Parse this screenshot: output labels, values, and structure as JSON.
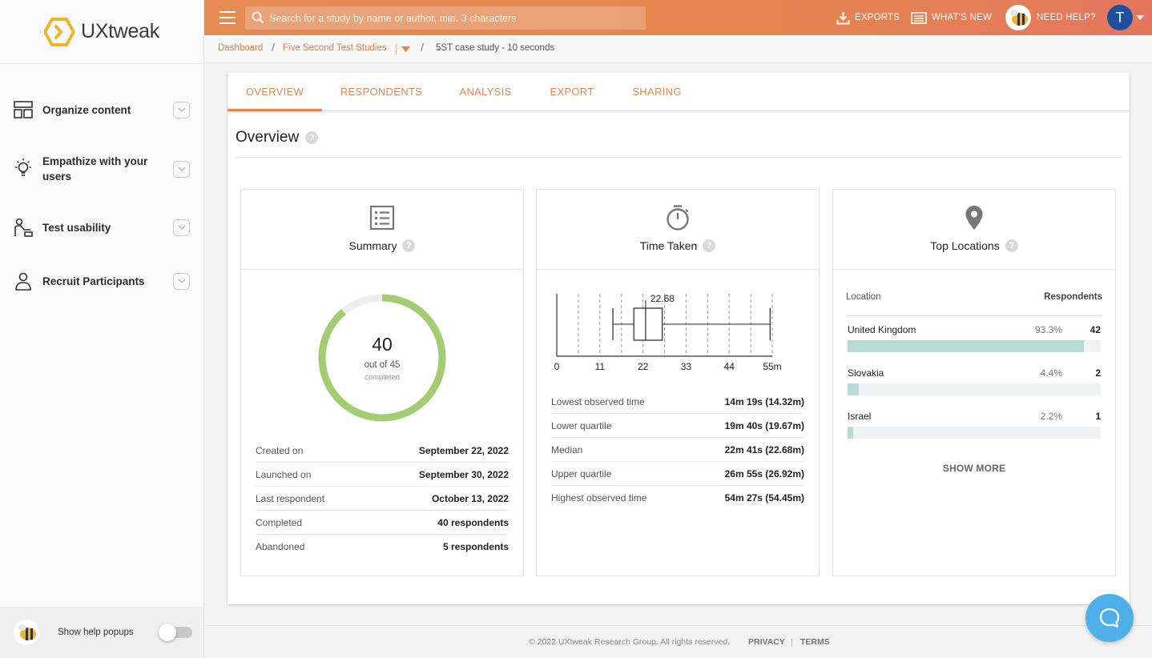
{
  "app": {
    "logo_text": "UXtweak"
  },
  "colors": {
    "accent": "#e1864f",
    "donut": "#a3cc73",
    "bar": "#b7dbd7",
    "avatar": "#1f4fa0",
    "chat": "#4fb0e9"
  },
  "sidebar": {
    "items": [
      {
        "label": "Organize content",
        "icon": "layout-icon"
      },
      {
        "label": "Empathize with your users",
        "icon": "lightbulb-icon"
      },
      {
        "label": "Test usability",
        "icon": "user-desk-icon"
      },
      {
        "label": "Recruit Participants",
        "icon": "person-icon"
      }
    ],
    "help_popups_label": "Show help popups",
    "help_popups_enabled": false
  },
  "topbar": {
    "search_placeholder": "Search for a study by name or author, min. 3 characters",
    "exports_label": "EXPORTS",
    "whats_new_label": "WHAT'S NEW",
    "need_help_label": "NEED HELP?",
    "avatar_initial": "T"
  },
  "breadcrumb": {
    "dashboard": "Dashboard",
    "folder": "Five Second Test Studies",
    "current": "5ST case study - 10 seconds",
    "separator": "/"
  },
  "tabs": [
    {
      "label": "OVERVIEW",
      "active": true
    },
    {
      "label": "RESPONDENTS",
      "active": false
    },
    {
      "label": "ANALYSIS",
      "active": false
    },
    {
      "label": "EXPORT",
      "active": false
    },
    {
      "label": "SHARING",
      "active": false
    }
  ],
  "overview": {
    "title": "Overview",
    "help_mark": "?"
  },
  "summary": {
    "title": "Summary",
    "completed_count": "40",
    "out_of_text": "out of 45",
    "completed_text": "completed",
    "completed_fraction": 0.889,
    "rows": [
      {
        "key": "Created on",
        "value": "September 22, 2022"
      },
      {
        "key": "Launched on",
        "value": "September 30, 2022"
      },
      {
        "key": "Last respondent",
        "value": "October 13, 2022"
      },
      {
        "key": "Completed",
        "value": "40 respondents"
      },
      {
        "key": "Abandoned",
        "value": "5 respondents"
      }
    ]
  },
  "time_taken": {
    "title": "Time Taken",
    "rows": [
      {
        "key": "Lowest observed time",
        "value": "14m 19s (14.32m)"
      },
      {
        "key": "Lower quartile",
        "value": "19m 40s (19.67m)"
      },
      {
        "key": "Median",
        "value": "22m 41s (22.68m)"
      },
      {
        "key": "Upper quartile",
        "value": "26m 55s (26.92m)"
      },
      {
        "key": "Highest observed time",
        "value": "54m 27s (54.45m)"
      }
    ]
  },
  "chart_data": {
    "type": "boxplot",
    "min": 14.32,
    "q1": 19.67,
    "median": 22.68,
    "q3": 26.92,
    "max": 54.45,
    "median_label": "22.68",
    "xlim": [
      0,
      55
    ],
    "ticks": [
      0,
      11,
      22,
      33,
      44,
      55
    ],
    "tick_labels": [
      "0",
      "11",
      "22",
      "33",
      "44",
      "55m"
    ],
    "grid_step": 5.5,
    "grid": true
  },
  "locations": {
    "title": "Top Locations",
    "col_location": "Location",
    "col_respondents": "Respondents",
    "rows": [
      {
        "name": "United Kingdom",
        "pct": "93.3%",
        "count": "42",
        "fraction": 0.933
      },
      {
        "name": "Slovakia",
        "pct": "4.4%",
        "count": "2",
        "fraction": 0.044
      },
      {
        "name": "Israel",
        "pct": "2.2%",
        "count": "1",
        "fraction": 0.022
      }
    ],
    "show_more": "SHOW MORE"
  },
  "footer": {
    "copyright": "© 2022 UXtweak Research Group. All rights reserved.",
    "privacy": "PRIVACY",
    "terms": "TERMS"
  }
}
